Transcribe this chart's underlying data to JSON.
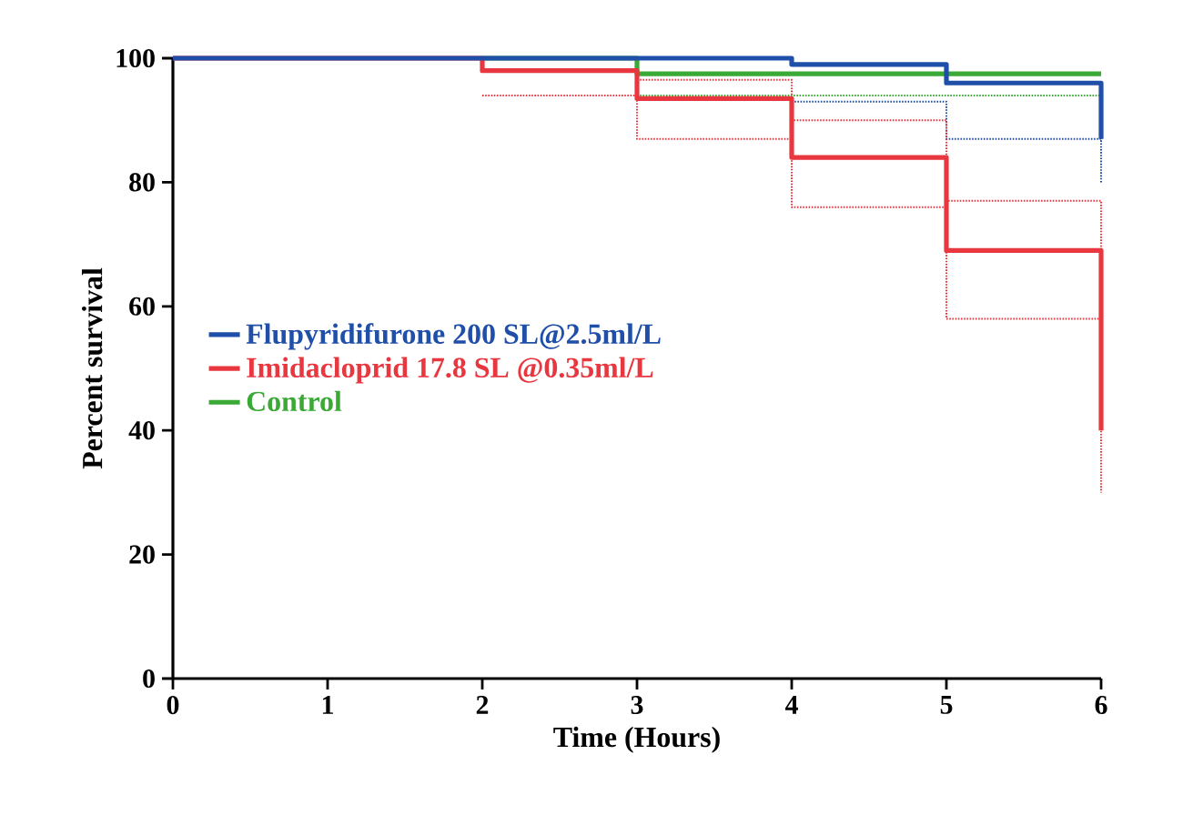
{
  "chart_data": {
    "type": "step",
    "xlabel": "Time (Hours)",
    "ylabel": "Percent survival",
    "x": [
      0,
      1,
      2,
      3,
      4,
      5,
      6
    ],
    "xlim": [
      0,
      6
    ],
    "ylim": [
      0,
      100
    ],
    "xticks": [
      0,
      1,
      2,
      3,
      4,
      5,
      6
    ],
    "yticks": [
      0,
      20,
      40,
      60,
      80,
      100
    ],
    "grid": false,
    "legend": "left",
    "line_style": "solid",
    "series": [
      {
        "name": "Flupyridifurone 200 SL@2.5ml/L",
        "color": "#1f4fa8",
        "values": [
          100,
          100,
          100,
          100,
          99,
          96,
          87
        ]
      },
      {
        "name": "Imidacloprid 17.8 SL @0.35ml/L",
        "color": "#e8373f",
        "values": [
          100,
          100,
          98,
          93.5,
          84,
          69,
          40
        ]
      },
      {
        "name": "Control",
        "color": "#3aa935",
        "values": [
          null,
          null,
          100,
          97.5,
          97.5,
          97.5,
          97.5
        ]
      },
      {
        "color": "#1f4fa8",
        "line_style": "dotted",
        "values": [
          null,
          null,
          null,
          null,
          93,
          87,
          80
        ]
      },
      {
        "color": "#e8373f",
        "line_style": "dotted",
        "values": [
          null,
          null,
          94,
          87,
          76,
          58,
          30
        ]
      },
      {
        "color": "#e8373f",
        "line_style": "dotted",
        "values": [
          null,
          null,
          null,
          96.5,
          90,
          77,
          52
        ]
      },
      {
        "color": "#3aa935",
        "line_style": "dotted",
        "values": [
          null,
          null,
          null,
          94,
          94,
          94,
          94
        ]
      }
    ]
  }
}
